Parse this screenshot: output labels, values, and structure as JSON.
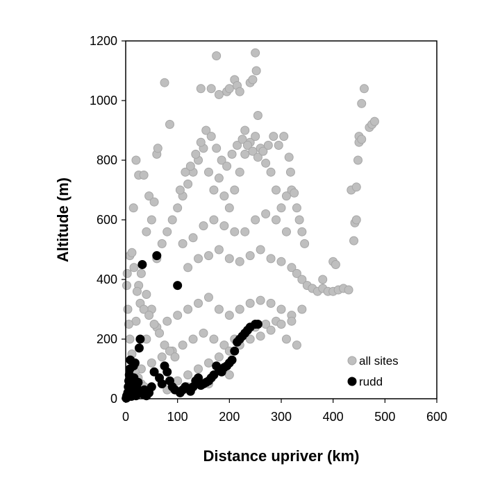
{
  "chart_data": {
    "type": "scatter",
    "xlabel": "Distance upriver (km)",
    "ylabel": "Altitude (m)",
    "xlim": [
      0,
      600
    ],
    "ylim": [
      0,
      1200
    ],
    "xticks": [
      0,
      100,
      200,
      300,
      400,
      500,
      600
    ],
    "yticks": [
      0,
      200,
      400,
      600,
      800,
      1000,
      1200
    ],
    "grid": false,
    "legend_position": "bottom-right",
    "series": [
      {
        "name": "all sites",
        "color": "#bfbfbf",
        "edge_color": "#a6a6a6",
        "points": [
          [
            5,
            20
          ],
          [
            10,
            50
          ],
          [
            15,
            120
          ],
          [
            20,
            260
          ],
          [
            25,
            380
          ],
          [
            30,
            420
          ],
          [
            40,
            350
          ],
          [
            50,
            300
          ],
          [
            60,
            470
          ],
          [
            70,
            520
          ],
          [
            80,
            560
          ],
          [
            90,
            600
          ],
          [
            100,
            640
          ],
          [
            110,
            680
          ],
          [
            120,
            720
          ],
          [
            130,
            760
          ],
          [
            140,
            800
          ],
          [
            150,
            840
          ],
          [
            160,
            760
          ],
          [
            170,
            700
          ],
          [
            180,
            740
          ],
          [
            190,
            680
          ],
          [
            200,
            640
          ],
          [
            210,
            700
          ],
          [
            220,
            760
          ],
          [
            230,
            820
          ],
          [
            240,
            860
          ],
          [
            250,
            880
          ],
          [
            260,
            840
          ],
          [
            270,
            790
          ],
          [
            280,
            760
          ],
          [
            290,
            700
          ],
          [
            300,
            640
          ],
          [
            310,
            680
          ],
          [
            320,
            700
          ],
          [
            15,
            640
          ],
          [
            20,
            800
          ],
          [
            25,
            750
          ],
          [
            35,
            750
          ],
          [
            45,
            680
          ],
          [
            55,
            660
          ],
          [
            60,
            820
          ],
          [
            62,
            840
          ],
          [
            75,
            1060
          ],
          [
            85,
            920
          ],
          [
            145,
            1040
          ],
          [
            165,
            1040
          ],
          [
            175,
            1150
          ],
          [
            195,
            1030
          ],
          [
            200,
            1040
          ],
          [
            210,
            1070
          ],
          [
            215,
            1050
          ],
          [
            240,
            1060
          ],
          [
            245,
            1070
          ],
          [
            250,
            1160
          ],
          [
            252,
            1100
          ],
          [
            255,
            950
          ],
          [
            180,
            1020
          ],
          [
            220,
            1030
          ],
          [
            230,
            900
          ],
          [
            110,
            520
          ],
          [
            130,
            540
          ],
          [
            150,
            580
          ],
          [
            170,
            600
          ],
          [
            190,
            580
          ],
          [
            210,
            560
          ],
          [
            230,
            560
          ],
          [
            250,
            600
          ],
          [
            270,
            620
          ],
          [
            290,
            600
          ],
          [
            310,
            560
          ],
          [
            120,
            440
          ],
          [
            140,
            470
          ],
          [
            160,
            480
          ],
          [
            180,
            500
          ],
          [
            200,
            470
          ],
          [
            220,
            460
          ],
          [
            240,
            480
          ],
          [
            260,
            500
          ],
          [
            280,
            470
          ],
          [
            300,
            460
          ],
          [
            320,
            440
          ],
          [
            330,
            420
          ],
          [
            340,
            400
          ],
          [
            350,
            380
          ],
          [
            360,
            370
          ],
          [
            370,
            360
          ],
          [
            380,
            370
          ],
          [
            390,
            360
          ],
          [
            400,
            360
          ],
          [
            410,
            365
          ],
          [
            420,
            370
          ],
          [
            430,
            365
          ],
          [
            380,
            400
          ],
          [
            400,
            460
          ],
          [
            405,
            450
          ],
          [
            440,
            530
          ],
          [
            442,
            590
          ],
          [
            445,
            600
          ],
          [
            448,
            800
          ],
          [
            450,
            880
          ],
          [
            455,
            990
          ],
          [
            460,
            1040
          ],
          [
            470,
            910
          ],
          [
            475,
            920
          ],
          [
            480,
            930
          ],
          [
            435,
            700
          ],
          [
            445,
            710
          ],
          [
            450,
            860
          ],
          [
            455,
            870
          ],
          [
            40,
            200
          ],
          [
            60,
            240
          ],
          [
            80,
            260
          ],
          [
            100,
            280
          ],
          [
            120,
            300
          ],
          [
            140,
            320
          ],
          [
            160,
            340
          ],
          [
            180,
            300
          ],
          [
            200,
            280
          ],
          [
            220,
            300
          ],
          [
            240,
            320
          ],
          [
            260,
            330
          ],
          [
            280,
            320
          ],
          [
            300,
            300
          ],
          [
            320,
            280
          ],
          [
            340,
            300
          ],
          [
            30,
            100
          ],
          [
            50,
            120
          ],
          [
            70,
            140
          ],
          [
            90,
            160
          ],
          [
            110,
            180
          ],
          [
            130,
            200
          ],
          [
            150,
            220
          ],
          [
            170,
            200
          ],
          [
            190,
            180
          ],
          [
            210,
            200
          ],
          [
            230,
            220
          ],
          [
            250,
            240
          ],
          [
            270,
            250
          ],
          [
            290,
            260
          ],
          [
            310,
            200
          ],
          [
            330,
            180
          ],
          [
            100,
            60
          ],
          [
            120,
            80
          ],
          [
            140,
            100
          ],
          [
            160,
            120
          ],
          [
            180,
            140
          ],
          [
            200,
            160
          ],
          [
            220,
            180
          ],
          [
            240,
            200
          ],
          [
            260,
            210
          ],
          [
            280,
            230
          ],
          [
            300,
            250
          ],
          [
            320,
            260
          ],
          [
            80,
            30
          ],
          [
            120,
            40
          ],
          [
            160,
            50
          ],
          [
            200,
            80
          ],
          [
            40,
            560
          ],
          [
            50,
            600
          ],
          [
            8,
            480
          ],
          [
            12,
            490
          ],
          [
            16,
            440
          ],
          [
            22,
            360
          ],
          [
            28,
            320
          ],
          [
            35,
            300
          ],
          [
            45,
            280
          ],
          [
            55,
            250
          ],
          [
            65,
            220
          ],
          [
            75,
            180
          ],
          [
            85,
            160
          ],
          [
            95,
            140
          ],
          [
            105,
            700
          ],
          [
            115,
            760
          ],
          [
            125,
            780
          ],
          [
            135,
            820
          ],
          [
            145,
            860
          ],
          [
            155,
            900
          ],
          [
            165,
            880
          ],
          [
            175,
            840
          ],
          [
            185,
            800
          ],
          [
            195,
            780
          ],
          [
            205,
            820
          ],
          [
            215,
            850
          ],
          [
            225,
            870
          ],
          [
            235,
            850
          ],
          [
            245,
            830
          ],
          [
            255,
            810
          ],
          [
            265,
            830
          ],
          [
            275,
            850
          ],
          [
            285,
            880
          ],
          [
            295,
            850
          ],
          [
            305,
            880
          ],
          [
            315,
            810
          ],
          [
            318,
            760
          ],
          [
            325,
            690
          ],
          [
            330,
            640
          ],
          [
            335,
            600
          ],
          [
            340,
            560
          ],
          [
            345,
            520
          ],
          [
            2,
            380
          ],
          [
            3,
            420
          ],
          [
            4,
            300
          ],
          [
            6,
            250
          ],
          [
            8,
            200
          ],
          [
            12,
            150
          ],
          [
            18,
            90
          ],
          [
            24,
            70
          ],
          [
            30,
            50
          ],
          [
            36,
            40
          ]
        ]
      },
      {
        "name": "rudd",
        "color": "#000000",
        "edge_color": "#000000",
        "points": [
          [
            2,
            10
          ],
          [
            4,
            20
          ],
          [
            5,
            40
          ],
          [
            6,
            60
          ],
          [
            7,
            80
          ],
          [
            8,
            100
          ],
          [
            9,
            130
          ],
          [
            10,
            15
          ],
          [
            12,
            30
          ],
          [
            14,
            50
          ],
          [
            16,
            70
          ],
          [
            18,
            25
          ],
          [
            20,
            10
          ],
          [
            22,
            35
          ],
          [
            24,
            55
          ],
          [
            26,
            170
          ],
          [
            28,
            200
          ],
          [
            30,
            20
          ],
          [
            32,
            450
          ],
          [
            34,
            15
          ],
          [
            36,
            30
          ],
          [
            40,
            10
          ],
          [
            45,
            20
          ],
          [
            50,
            40
          ],
          [
            55,
            90
          ],
          [
            60,
            480
          ],
          [
            65,
            70
          ],
          [
            70,
            50
          ],
          [
            75,
            110
          ],
          [
            80,
            90
          ],
          [
            85,
            60
          ],
          [
            90,
            40
          ],
          [
            95,
            30
          ],
          [
            100,
            380
          ],
          [
            105,
            20
          ],
          [
            110,
            30
          ],
          [
            115,
            40
          ],
          [
            120,
            35
          ],
          [
            125,
            25
          ],
          [
            130,
            40
          ],
          [
            135,
            60
          ],
          [
            140,
            70
          ],
          [
            145,
            45
          ],
          [
            150,
            50
          ],
          [
            155,
            55
          ],
          [
            160,
            60
          ],
          [
            165,
            70
          ],
          [
            170,
            80
          ],
          [
            175,
            110
          ],
          [
            180,
            100
          ],
          [
            185,
            90
          ],
          [
            190,
            105
          ],
          [
            195,
            110
          ],
          [
            200,
            120
          ],
          [
            205,
            130
          ],
          [
            210,
            160
          ],
          [
            215,
            190
          ],
          [
            220,
            200
          ],
          [
            225,
            210
          ],
          [
            230,
            220
          ],
          [
            235,
            230
          ],
          [
            240,
            240
          ],
          [
            250,
            250
          ],
          [
            255,
            250
          ],
          [
            15,
            110
          ],
          [
            18,
            120
          ],
          [
            3,
            5
          ],
          [
            1,
            2
          ],
          [
            11,
            8
          ],
          [
            13,
            12
          ]
        ]
      }
    ]
  }
}
